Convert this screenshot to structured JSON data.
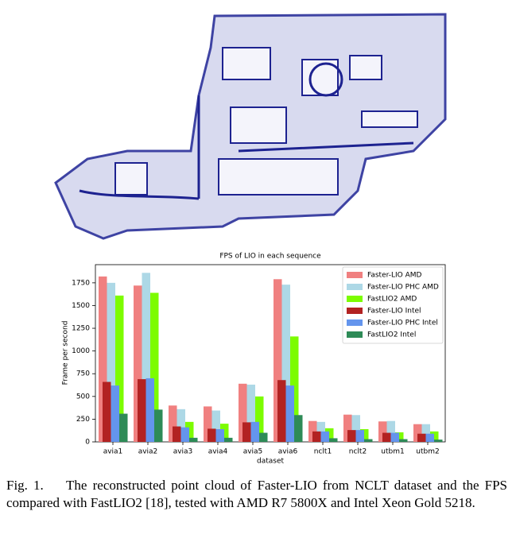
{
  "chart_data": {
    "type": "bar",
    "title": "FPS of LIO in each sequence",
    "x_label": "dataset",
    "y_label": "Frame per second",
    "categories": [
      "avia1",
      "avia2",
      "avia3",
      "avia4",
      "avia5",
      "avia6",
      "nclt1",
      "nclt2",
      "utbm1",
      "utbm2"
    ],
    "series": [
      {
        "name": "Faster-LIO AMD",
        "color": "#f08080",
        "values": [
          1820,
          1720,
          400,
          390,
          640,
          1790,
          230,
          300,
          225,
          195
        ]
      },
      {
        "name": "Faster-LIO  PHC AMD",
        "color": "#add8e6",
        "values": [
          1750,
          1860,
          360,
          345,
          630,
          1730,
          220,
          295,
          230,
          195
        ]
      },
      {
        "name": "FastLIO2 AMD",
        "color": "#7cfc00",
        "values": [
          1610,
          1640,
          220,
          200,
          500,
          1160,
          150,
          140,
          105,
          115
        ]
      },
      {
        "name": "Faster-LIO Intel",
        "color": "#b22222",
        "values": [
          660,
          690,
          170,
          145,
          215,
          680,
          115,
          130,
          100,
          90
        ]
      },
      {
        "name": "Faster-LIO PHC Intel",
        "color": "#6495ed",
        "values": [
          620,
          700,
          160,
          140,
          220,
          620,
          115,
          130,
          100,
          90
        ]
      },
      {
        "name": "FastLIO2 Intel",
        "color": "#2e8b57",
        "values": [
          310,
          355,
          45,
          45,
          100,
          295,
          40,
          30,
          30,
          25
        ]
      }
    ],
    "ylim": [
      0,
      1950
    ],
    "yticks": [
      0,
      250,
      500,
      750,
      1000,
      1250,
      1500,
      1750
    ],
    "legend": "upper right"
  },
  "caption": {
    "label": "Fig. 1.",
    "text": "The reconstructed point cloud of Faster-LIO from NCLT dataset and the FPS compared with FastLIO2 [18], tested with AMD R7 5800X and Intel Xeon Gold 5218."
  }
}
